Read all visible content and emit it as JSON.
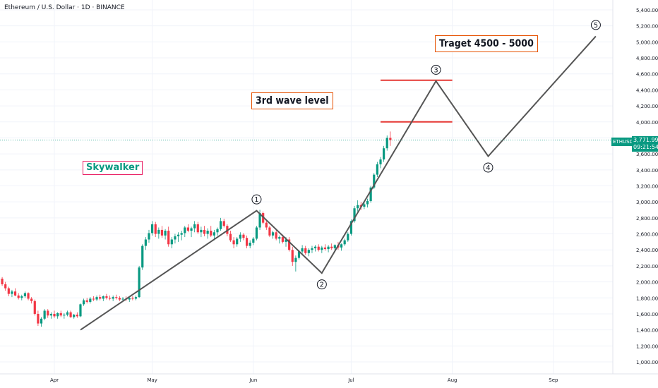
{
  "header": {
    "symbol": "Ethereum",
    "quote": "U.S. Dollar",
    "interval": "1D",
    "exchange": "BINANCE"
  },
  "annotations": {
    "target": "Traget 4500 - 5000",
    "wave_level": "3rd wave level",
    "author": "Skywalker"
  },
  "price_badge": {
    "symbol": "ETHUSD",
    "price": "3,771.99",
    "countdown": "09:21:54"
  },
  "colors": {
    "up": "#089981",
    "down": "#f23645",
    "wave_line": "#555555",
    "level_line": "#e53935",
    "label_border": "#e65100",
    "author_border": "#e91e63"
  },
  "chart_data": {
    "type": "candlestick",
    "title": "Ethereum / U.S. Dollar · 1D · BINANCE",
    "x_ticks": [
      "Apr",
      "May",
      "Jun",
      "Jul",
      "Aug",
      "Sep"
    ],
    "y_ticks": [
      "1,000.00",
      "1,200.00",
      "1,400.00",
      "1,600.00",
      "1,800.00",
      "2,000.00",
      "2,200.00",
      "2,400.00",
      "2,600.00",
      "2,800.00",
      "3,000.00",
      "3,200.00",
      "3,400.00",
      "3,600.00",
      "3,800.00",
      "4,000.00",
      "4,200.00",
      "4,400.00",
      "4,600.00",
      "4,800.00",
      "5,000.00",
      "5,200.00",
      "5,400.00"
    ],
    "ylim": [
      900,
      5450
    ],
    "last_price": 3771.99,
    "wave_path": [
      {
        "date": "2021-04-09",
        "price": 1400
      },
      {
        "date": "2021-06-02",
        "price": 2890,
        "label": "1"
      },
      {
        "date": "2021-06-22",
        "price": 2110,
        "label": "2"
      },
      {
        "date": "2021-07-27",
        "price": 4510,
        "label": "3"
      },
      {
        "date": "2021-08-12",
        "price": 3570,
        "label": "4"
      },
      {
        "date": "2021-09-14",
        "price": 5070,
        "label": "5"
      }
    ],
    "levels": [
      {
        "price": 4520,
        "from": "2021-07-10",
        "to": "2021-08-01"
      },
      {
        "price": 4000,
        "from": "2021-07-10",
        "to": "2021-08-01"
      }
    ],
    "candles_ohlc": [
      [
        1920,
        1950,
        1880,
        1910
      ],
      [
        1910,
        1940,
        1870,
        1900
      ],
      [
        1900,
        1960,
        1890,
        1950
      ],
      [
        1950,
        2020,
        1930,
        2000
      ],
      [
        2000,
        2040,
        1960,
        1980
      ],
      [
        1980,
        2000,
        1920,
        1950
      ],
      [
        1950,
        1990,
        1920,
        1970
      ],
      [
        1970,
        2080,
        1960,
        2060
      ],
      [
        2060,
        2090,
        2000,
        2020
      ],
      [
        2020,
        2060,
        1990,
        2040
      ],
      [
        2040,
        2060,
        1950,
        1970
      ],
      [
        1970,
        2000,
        1890,
        1920
      ],
      [
        1920,
        1940,
        1820,
        1850
      ],
      [
        1850,
        1900,
        1810,
        1880
      ],
      [
        1880,
        1920,
        1820,
        1830
      ],
      [
        1830,
        1860,
        1780,
        1800
      ],
      [
        1800,
        1840,
        1770,
        1820
      ],
      [
        1820,
        1880,
        1800,
        1860
      ],
      [
        1860,
        1870,
        1770,
        1790
      ],
      [
        1790,
        1810,
        1730,
        1760
      ],
      [
        1760,
        1780,
        1580,
        1600
      ],
      [
        1600,
        1640,
        1450,
        1480
      ],
      [
        1480,
        1560,
        1440,
        1540
      ],
      [
        1540,
        1660,
        1520,
        1640
      ],
      [
        1640,
        1660,
        1550,
        1580
      ],
      [
        1580,
        1620,
        1540,
        1600
      ],
      [
        1600,
        1640,
        1550,
        1570
      ],
      [
        1570,
        1620,
        1540,
        1610
      ],
      [
        1610,
        1640,
        1560,
        1580
      ],
      [
        1580,
        1610,
        1540,
        1590
      ],
      [
        1590,
        1640,
        1570,
        1620
      ],
      [
        1620,
        1640,
        1550,
        1560
      ],
      [
        1560,
        1600,
        1540,
        1590
      ],
      [
        1590,
        1620,
        1550,
        1570
      ],
      [
        1570,
        1730,
        1560,
        1720
      ],
      [
        1720,
        1790,
        1700,
        1770
      ],
      [
        1770,
        1800,
        1730,
        1750
      ],
      [
        1750,
        1810,
        1730,
        1790
      ],
      [
        1790,
        1820,
        1760,
        1780
      ],
      [
        1780,
        1830,
        1760,
        1810
      ],
      [
        1810,
        1840,
        1770,
        1790
      ],
      [
        1790,
        1830,
        1760,
        1820
      ],
      [
        1820,
        1850,
        1780,
        1800
      ],
      [
        1800,
        1830,
        1770,
        1790
      ],
      [
        1790,
        1830,
        1760,
        1810
      ],
      [
        1810,
        1840,
        1780,
        1800
      ],
      [
        1800,
        1820,
        1760,
        1780
      ],
      [
        1780,
        1810,
        1750,
        1790
      ],
      [
        1790,
        1820,
        1760,
        1780
      ],
      [
        1780,
        1820,
        1750,
        1800
      ],
      [
        1800,
        1820,
        1770,
        1790
      ],
      [
        1790,
        1830,
        1770,
        1810
      ],
      [
        1810,
        2200,
        1800,
        2180
      ],
      [
        2180,
        2470,
        2150,
        2450
      ],
      [
        2450,
        2560,
        2400,
        2530
      ],
      [
        2530,
        2650,
        2490,
        2610
      ],
      [
        2610,
        2760,
        2580,
        2720
      ],
      [
        2720,
        2750,
        2560,
        2600
      ],
      [
        2600,
        2680,
        2540,
        2650
      ],
      [
        2650,
        2700,
        2550,
        2580
      ],
      [
        2580,
        2660,
        2530,
        2640
      ],
      [
        2640,
        2690,
        2440,
        2470
      ],
      [
        2470,
        2560,
        2420,
        2530
      ],
      [
        2530,
        2600,
        2480,
        2570
      ],
      [
        2570,
        2620,
        2500,
        2590
      ],
      [
        2590,
        2640,
        2520,
        2610
      ],
      [
        2610,
        2700,
        2560,
        2680
      ],
      [
        2680,
        2720,
        2620,
        2640
      ],
      [
        2640,
        2690,
        2560,
        2670
      ],
      [
        2670,
        2760,
        2620,
        2720
      ],
      [
        2720,
        2750,
        2600,
        2620
      ],
      [
        2620,
        2690,
        2560,
        2650
      ],
      [
        2650,
        2700,
        2570,
        2600
      ],
      [
        2600,
        2670,
        2540,
        2640
      ],
      [
        2640,
        2700,
        2560,
        2580
      ],
      [
        2580,
        2650,
        2520,
        2620
      ],
      [
        2620,
        2680,
        2580,
        2660
      ],
      [
        2660,
        2800,
        2640,
        2760
      ],
      [
        2760,
        2790,
        2680,
        2700
      ],
      [
        2700,
        2720,
        2570,
        2600
      ],
      [
        2600,
        2640,
        2500,
        2520
      ],
      [
        2520,
        2560,
        2420,
        2470
      ],
      [
        2470,
        2560,
        2440,
        2540
      ],
      [
        2540,
        2620,
        2500,
        2590
      ],
      [
        2590,
        2610,
        2520,
        2550
      ],
      [
        2550,
        2580,
        2420,
        2450
      ],
      [
        2450,
        2520,
        2420,
        2490
      ],
      [
        2490,
        2560,
        2460,
        2540
      ],
      [
        2540,
        2700,
        2520,
        2680
      ],
      [
        2680,
        2900,
        2650,
        2860
      ],
      [
        2860,
        2880,
        2720,
        2740
      ],
      [
        2740,
        2780,
        2650,
        2680
      ],
      [
        2680,
        2700,
        2560,
        2580
      ],
      [
        2580,
        2640,
        2540,
        2620
      ],
      [
        2620,
        2650,
        2520,
        2540
      ],
      [
        2540,
        2580,
        2480,
        2560
      ],
      [
        2560,
        2590,
        2480,
        2500
      ],
      [
        2500,
        2560,
        2440,
        2530
      ],
      [
        2530,
        2560,
        2380,
        2400
      ],
      [
        2400,
        2440,
        2200,
        2250
      ],
      [
        2250,
        2330,
        2130,
        2300
      ],
      [
        2300,
        2400,
        2280,
        2380
      ],
      [
        2380,
        2460,
        2330,
        2420
      ],
      [
        2420,
        2450,
        2340,
        2360
      ],
      [
        2360,
        2420,
        2320,
        2400
      ],
      [
        2400,
        2450,
        2360,
        2420
      ],
      [
        2420,
        2460,
        2380,
        2440
      ],
      [
        2440,
        2470,
        2380,
        2400
      ],
      [
        2400,
        2450,
        2360,
        2430
      ],
      [
        2430,
        2470,
        2390,
        2410
      ],
      [
        2410,
        2460,
        2370,
        2440
      ],
      [
        2440,
        2480,
        2400,
        2420
      ],
      [
        2420,
        2470,
        2380,
        2460
      ],
      [
        2460,
        2500,
        2400,
        2430
      ],
      [
        2430,
        2480,
        2390,
        2470
      ],
      [
        2470,
        2540,
        2450,
        2520
      ],
      [
        2520,
        2620,
        2500,
        2600
      ],
      [
        2600,
        2780,
        2580,
        2760
      ],
      [
        2760,
        2950,
        2740,
        2920
      ],
      [
        2920,
        3020,
        2880,
        2960
      ],
      [
        2960,
        3000,
        2900,
        2940
      ],
      [
        2940,
        3000,
        2910,
        2970
      ],
      [
        2970,
        3040,
        2930,
        3010
      ],
      [
        3010,
        3200,
        2990,
        3180
      ],
      [
        3180,
        3360,
        3160,
        3340
      ],
      [
        3340,
        3500,
        3310,
        3470
      ],
      [
        3470,
        3560,
        3420,
        3530
      ],
      [
        3530,
        3700,
        3500,
        3670
      ],
      [
        3670,
        3830,
        3640,
        3800
      ],
      [
        3800,
        3880,
        3700,
        3772
      ]
    ]
  }
}
